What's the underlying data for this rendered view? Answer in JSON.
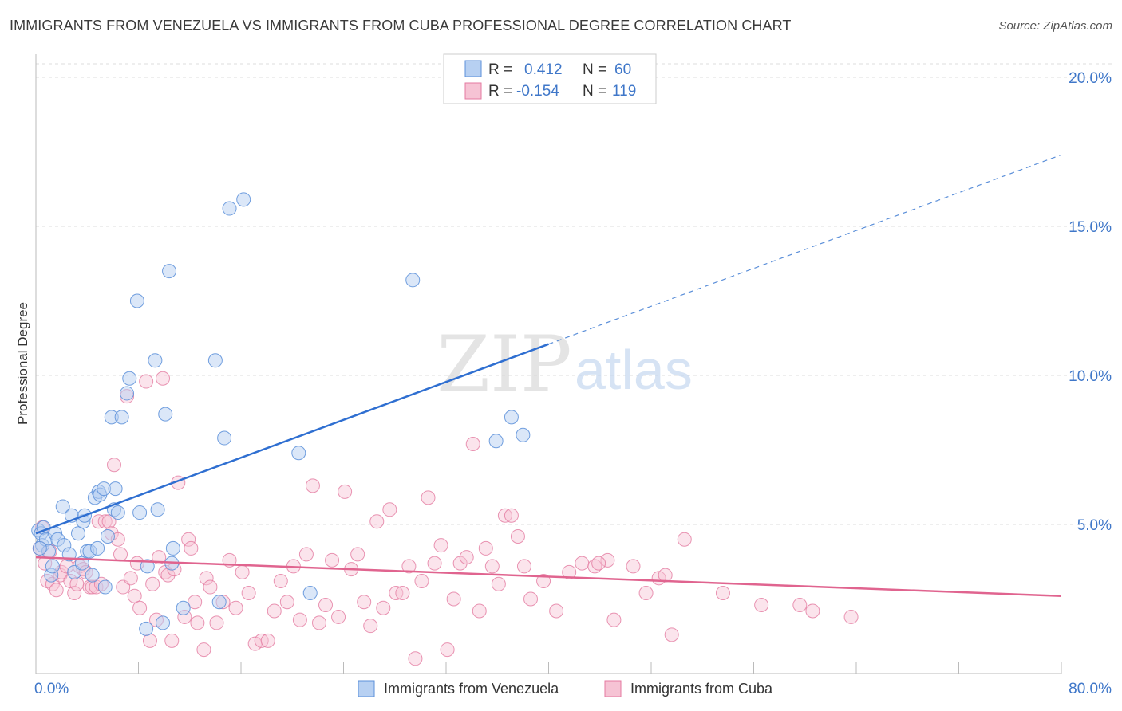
{
  "header": {
    "title": "IMMIGRANTS FROM VENEZUELA VS IMMIGRANTS FROM CUBA PROFESSIONAL DEGREE CORRELATION CHART",
    "source": "Source: ZipAtlas.com"
  },
  "watermark": {
    "zip": "ZIP",
    "atlas": "atlas"
  },
  "legend": {
    "rows": [
      {
        "r_label": "R = ",
        "r_value": "0.412",
        "n_label": "N = ",
        "n_value": "60"
      },
      {
        "r_label": "R = ",
        "r_value": "-0.154",
        "n_label": "N = ",
        "n_value": "119"
      }
    ]
  },
  "colors": {
    "venezuela": "#5b8fd9",
    "venezuela_fill": "#b7d0f2",
    "cuba": "#e47aa0",
    "cuba_fill": "#f6c3d4",
    "tick": "#3f77c9",
    "grid": "#dddddd"
  },
  "chart_data": {
    "type": "scatter",
    "title": "IMMIGRANTS FROM VENEZUELA VS IMMIGRANTS FROM CUBA PROFESSIONAL DEGREE CORRELATION CHART",
    "xlabel": "",
    "ylabel": "Professional Degree",
    "xlim": [
      0,
      80
    ],
    "ylim": [
      0,
      21
    ],
    "x_tick_labels": [
      "0.0%",
      "80.0%"
    ],
    "y_ticks": [
      5,
      10,
      15,
      20
    ],
    "y_tick_labels": [
      "5.0%",
      "10.0%",
      "15.0%",
      "20.0%"
    ],
    "grid": true,
    "legend_position": "top-center",
    "series": [
      {
        "name": "Immigrants from Venezuela",
        "color": "#5b8fd9",
        "trend": {
          "x0": 0,
          "y0": 4.7,
          "x1": 80,
          "y1": 17.4,
          "solid_until_x": 40
        },
        "points": [
          [
            0.2,
            4.8
          ],
          [
            0.4,
            4.7
          ],
          [
            0.5,
            4.3
          ],
          [
            0.6,
            4.9
          ],
          [
            0.8,
            4.5
          ],
          [
            1.0,
            4.1
          ],
          [
            1.2,
            3.3
          ],
          [
            1.3,
            3.6
          ],
          [
            1.5,
            4.7
          ],
          [
            1.7,
            4.5
          ],
          [
            2.1,
            5.6
          ],
          [
            2.2,
            4.3
          ],
          [
            2.6,
            4.0
          ],
          [
            2.8,
            5.3
          ],
          [
            3.0,
            3.4
          ],
          [
            3.3,
            4.7
          ],
          [
            3.6,
            3.7
          ],
          [
            3.7,
            5.1
          ],
          [
            3.8,
            5.3
          ],
          [
            4.0,
            4.1
          ],
          [
            4.2,
            4.1
          ],
          [
            4.4,
            3.3
          ],
          [
            4.6,
            5.9
          ],
          [
            4.8,
            4.2
          ],
          [
            4.9,
            6.1
          ],
          [
            5.0,
            6.0
          ],
          [
            5.3,
            6.2
          ],
          [
            5.4,
            2.9
          ],
          [
            5.6,
            4.6
          ],
          [
            5.9,
            8.6
          ],
          [
            6.1,
            5.5
          ],
          [
            6.2,
            6.2
          ],
          [
            6.4,
            5.4
          ],
          [
            6.7,
            8.6
          ],
          [
            7.1,
            9.4
          ],
          [
            7.3,
            9.9
          ],
          [
            7.9,
            12.5
          ],
          [
            8.1,
            5.4
          ],
          [
            8.6,
            1.5
          ],
          [
            8.7,
            3.6
          ],
          [
            9.3,
            10.5
          ],
          [
            9.5,
            5.5
          ],
          [
            9.9,
            1.7
          ],
          [
            10.1,
            8.7
          ],
          [
            10.4,
            13.5
          ],
          [
            10.6,
            3.7
          ],
          [
            10.7,
            4.2
          ],
          [
            11.5,
            2.2
          ],
          [
            14.0,
            10.5
          ],
          [
            14.3,
            2.4
          ],
          [
            14.7,
            7.9
          ],
          [
            15.1,
            15.6
          ],
          [
            16.2,
            15.9
          ],
          [
            20.5,
            7.4
          ],
          [
            21.4,
            2.7
          ],
          [
            29.4,
            13.2
          ],
          [
            35.9,
            7.8
          ],
          [
            37.1,
            8.6
          ],
          [
            38.0,
            8.0
          ],
          [
            0.3,
            4.2
          ]
        ]
      },
      {
        "name": "Immigrants from Cuba",
        "color": "#e47aa0",
        "trend": {
          "x0": 0,
          "y0": 3.9,
          "x1": 80,
          "y1": 2.6
        },
        "points": [
          [
            0.3,
            4.2
          ],
          [
            0.5,
            4.9
          ],
          [
            0.7,
            3.7
          ],
          [
            0.9,
            3.1
          ],
          [
            1.1,
            4.1
          ],
          [
            1.3,
            3.0
          ],
          [
            1.6,
            2.8
          ],
          [
            1.9,
            3.3
          ],
          [
            2.0,
            3.4
          ],
          [
            2.4,
            3.6
          ],
          [
            2.7,
            3.1
          ],
          [
            3.0,
            2.7
          ],
          [
            3.2,
            3.0
          ],
          [
            3.4,
            3.6
          ],
          [
            3.7,
            3.5
          ],
          [
            3.9,
            3.4
          ],
          [
            4.2,
            2.9
          ],
          [
            4.4,
            2.9
          ],
          [
            4.7,
            2.9
          ],
          [
            4.9,
            5.1
          ],
          [
            5.1,
            3.0
          ],
          [
            5.4,
            5.1
          ],
          [
            5.7,
            5.1
          ],
          [
            5.9,
            4.7
          ],
          [
            6.1,
            7.0
          ],
          [
            6.4,
            4.5
          ],
          [
            6.6,
            4.0
          ],
          [
            6.8,
            2.9
          ],
          [
            7.1,
            9.3
          ],
          [
            7.4,
            3.2
          ],
          [
            7.7,
            2.6
          ],
          [
            7.9,
            3.7
          ],
          [
            8.1,
            2.2
          ],
          [
            8.6,
            9.8
          ],
          [
            8.9,
            1.1
          ],
          [
            9.1,
            3.0
          ],
          [
            9.4,
            1.8
          ],
          [
            9.6,
            3.9
          ],
          [
            9.9,
            9.9
          ],
          [
            10.1,
            3.4
          ],
          [
            10.3,
            3.3
          ],
          [
            10.6,
            1.1
          ],
          [
            10.8,
            3.5
          ],
          [
            11.1,
            6.4
          ],
          [
            11.6,
            1.9
          ],
          [
            11.9,
            4.5
          ],
          [
            12.1,
            4.2
          ],
          [
            12.4,
            2.4
          ],
          [
            12.6,
            1.7
          ],
          [
            13.1,
            0.8
          ],
          [
            13.3,
            3.2
          ],
          [
            13.6,
            2.9
          ],
          [
            14.1,
            1.7
          ],
          [
            14.6,
            2.4
          ],
          [
            15.1,
            3.8
          ],
          [
            15.6,
            2.2
          ],
          [
            16.1,
            3.4
          ],
          [
            16.6,
            2.7
          ],
          [
            17.1,
            1.0
          ],
          [
            17.6,
            1.1
          ],
          [
            18.1,
            1.1
          ],
          [
            18.6,
            2.1
          ],
          [
            19.1,
            3.1
          ],
          [
            19.6,
            2.4
          ],
          [
            20.1,
            3.6
          ],
          [
            20.6,
            1.8
          ],
          [
            21.1,
            4.0
          ],
          [
            21.6,
            6.3
          ],
          [
            22.1,
            1.7
          ],
          [
            22.6,
            2.3
          ],
          [
            23.1,
            3.8
          ],
          [
            23.6,
            1.9
          ],
          [
            24.1,
            6.1
          ],
          [
            24.6,
            3.5
          ],
          [
            25.1,
            4.0
          ],
          [
            25.6,
            2.4
          ],
          [
            26.1,
            1.6
          ],
          [
            26.6,
            5.1
          ],
          [
            27.1,
            2.2
          ],
          [
            27.6,
            5.5
          ],
          [
            28.1,
            2.7
          ],
          [
            28.6,
            2.7
          ],
          [
            29.1,
            3.6
          ],
          [
            29.6,
            0.5
          ],
          [
            30.1,
            3.1
          ],
          [
            30.6,
            5.9
          ],
          [
            31.1,
            3.7
          ],
          [
            31.6,
            4.3
          ],
          [
            32.1,
            0.8
          ],
          [
            32.6,
            2.5
          ],
          [
            33.1,
            3.7
          ],
          [
            33.6,
            3.9
          ],
          [
            34.1,
            7.7
          ],
          [
            34.6,
            2.1
          ],
          [
            35.1,
            4.2
          ],
          [
            35.6,
            3.6
          ],
          [
            36.1,
            3.0
          ],
          [
            36.6,
            5.3
          ],
          [
            37.1,
            5.3
          ],
          [
            37.6,
            4.6
          ],
          [
            38.1,
            3.6
          ],
          [
            38.6,
            2.5
          ],
          [
            39.6,
            3.1
          ],
          [
            40.6,
            2.1
          ],
          [
            41.6,
            3.4
          ],
          [
            42.6,
            3.7
          ],
          [
            43.6,
            3.6
          ],
          [
            44.6,
            3.8
          ],
          [
            45.1,
            1.8
          ],
          [
            46.6,
            3.6
          ],
          [
            47.6,
            2.7
          ],
          [
            48.6,
            3.2
          ],
          [
            49.1,
            3.3
          ],
          [
            49.6,
            1.3
          ],
          [
            50.6,
            4.5
          ],
          [
            53.6,
            2.7
          ],
          [
            56.6,
            2.3
          ],
          [
            59.6,
            2.3
          ],
          [
            60.6,
            2.1
          ],
          [
            63.6,
            1.9
          ],
          [
            43.9,
            3.7
          ]
        ]
      }
    ]
  },
  "bottom_legend": [
    {
      "label": "Immigrants from Venezuela",
      "series": "venezuela"
    },
    {
      "label": "Immigrants from Cuba",
      "series": "cuba"
    }
  ]
}
